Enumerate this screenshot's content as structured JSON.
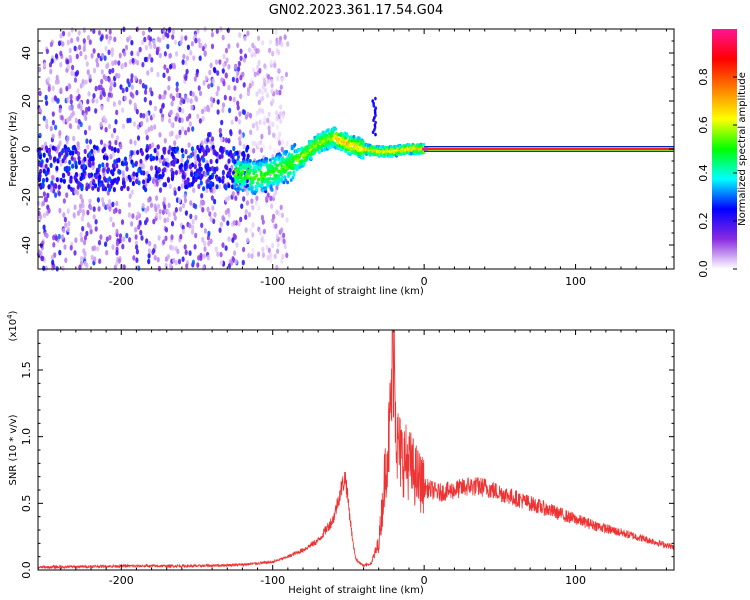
{
  "figure": {
    "title": "GN02.2023.361.17.54.G04"
  },
  "chart_data": [
    {
      "id": "spectrogram",
      "type": "heatmap",
      "xlabel": "Height of straight line (km)",
      "ylabel": "Frequency (Hz)",
      "xlim": [
        -255,
        165
      ],
      "ylim": [
        -50,
        50
      ],
      "xticks": [
        -200,
        -100,
        0,
        100
      ],
      "xtick_labels": [
        "-200",
        "-100",
        "0",
        "100"
      ],
      "yticks": [
        -40,
        -20,
        0,
        20,
        40
      ],
      "ytick_labels": [
        "-40",
        "-20",
        "0",
        "20",
        "40"
      ],
      "colorbar": {
        "label": "Normalized spectral amplitude",
        "range": [
          0,
          1
        ],
        "ticks": [
          0.0,
          0.2,
          0.4,
          0.6,
          0.8
        ],
        "tick_labels": [
          "0.0",
          "0.2",
          "0.4",
          "0.6",
          "0.8"
        ],
        "colormap": [
          "#ffffff",
          "#8a2be2",
          "#0000ff",
          "#00ffff",
          "#00ff00",
          "#ffff00",
          "#ff7f00",
          "#ff0000",
          "#ff1493"
        ]
      },
      "features": [
        {
          "name": "noise-region",
          "x_range": [
            -255,
            -115
          ],
          "y_range": [
            -50,
            50
          ],
          "level": 0.25
        },
        {
          "name": "signal-track",
          "points": [
            [
              -125,
              -10
            ],
            [
              -110,
              -12
            ],
            [
              -100,
              -10
            ],
            [
              -90,
              -7
            ],
            [
              -80,
              -3
            ],
            [
              -70,
              2
            ],
            [
              -60,
              5
            ],
            [
              -50,
              2
            ],
            [
              -40,
              0
            ],
            [
              -30,
              -1
            ],
            [
              -20,
              -1
            ],
            [
              -10,
              0
            ],
            [
              0,
              0
            ]
          ],
          "level": 0.5
        },
        {
          "name": "carrier-line",
          "x_range": [
            0,
            165
          ],
          "y": 0,
          "level": 1.0
        }
      ]
    },
    {
      "id": "snr",
      "type": "line",
      "ylabel": "SNR (10 * v/v)",
      "xlabel": "Height of straight line (km)",
      "y_multiplier_label": "(x10",
      "y_multiplier_exp": "4",
      "xlim": [
        -255,
        165
      ],
      "ylim": [
        0,
        1.8
      ],
      "xticks": [
        -200,
        -100,
        0,
        100
      ],
      "xtick_labels": [
        "-200",
        "-100",
        "0",
        "100"
      ],
      "yticks": [
        0.0,
        0.5,
        1.0,
        1.5
      ],
      "ytick_labels": [
        "0.0",
        "0.5",
        "1.0",
        "1.5"
      ],
      "color": "#ee3333",
      "series_envelope": {
        "x": [
          -255,
          -200,
          -150,
          -120,
          -100,
          -90,
          -80,
          -70,
          -60,
          -55,
          -52,
          -50,
          -47,
          -45,
          -40,
          -35,
          -30,
          -27,
          -25,
          -23,
          -20,
          -18,
          -15,
          -10,
          -5,
          0,
          10,
          20,
          30,
          40,
          50,
          60,
          80,
          100,
          120,
          140,
          165
        ],
        "y": [
          0.02,
          0.03,
          0.03,
          0.04,
          0.06,
          0.1,
          0.15,
          0.22,
          0.38,
          0.6,
          0.7,
          0.5,
          0.2,
          0.08,
          0.03,
          0.05,
          0.2,
          0.55,
          0.85,
          1.0,
          1.75,
          0.95,
          0.85,
          0.8,
          0.7,
          0.62,
          0.58,
          0.6,
          0.63,
          0.62,
          0.58,
          0.54,
          0.46,
          0.38,
          0.31,
          0.25,
          0.17
        ]
      },
      "peak": {
        "x": -21,
        "y": 1.8
      }
    }
  ]
}
